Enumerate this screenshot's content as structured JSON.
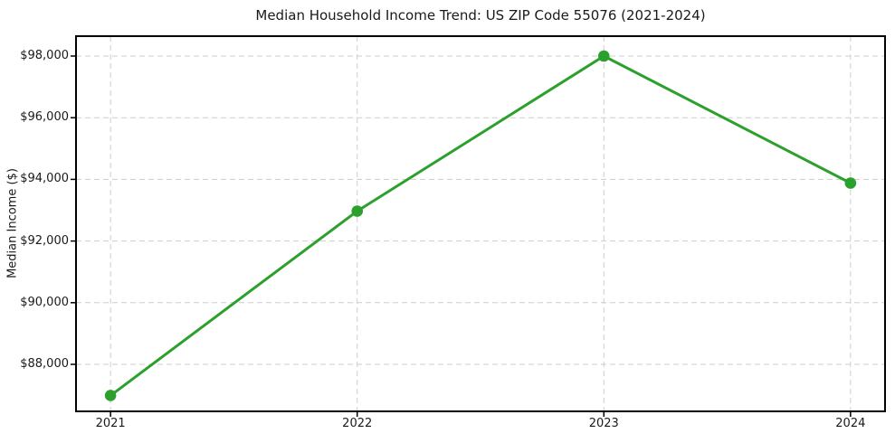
{
  "chart_data": {
    "type": "line",
    "title": "Median Household Income Trend: US ZIP Code 55076 (2021-2024)",
    "xlabel": "",
    "ylabel": "Median Income ($)",
    "x": [
      2021,
      2022,
      2023,
      2024
    ],
    "values": [
      86990,
      92970,
      98000,
      93880
    ],
    "xticks": {
      "values": [
        2021,
        2022,
        2023,
        2024
      ],
      "labels": [
        "2021",
        "2022",
        "2023",
        "2024"
      ]
    },
    "yticks": {
      "values": [
        88000,
        90000,
        92000,
        94000,
        96000,
        98000
      ],
      "labels": [
        "$88,000",
        "$90,000",
        "$92,000",
        "$94,000",
        "$96,000",
        "$98,000"
      ]
    },
    "xlim": [
      2020.86,
      2024.14
    ],
    "ylim": [
      86475,
      98645
    ],
    "grid": true,
    "grid_style": "dashed",
    "legend": "none",
    "marker": "circle",
    "colors": {
      "line": "#2ca02c",
      "grid": "#cdcdcd",
      "axis": "#000000",
      "text": "#1a1a1a",
      "background": "#ffffff"
    }
  }
}
